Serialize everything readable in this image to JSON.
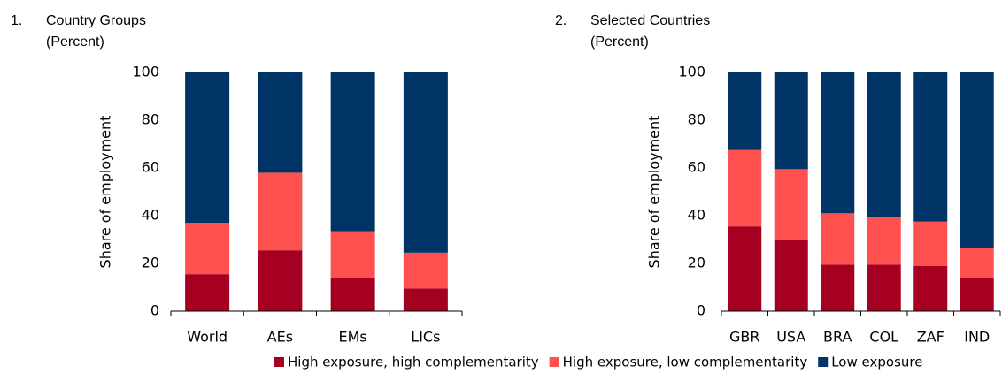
{
  "chart_data": [
    {
      "type": "bar",
      "stacked": true,
      "label": "1.",
      "title": "Country Groups",
      "subtitle": "(Percent)",
      "y_label": "Share of employment",
      "categories": [
        "World",
        "AEs",
        "EMs",
        "LICs"
      ],
      "series": [
        {
          "name": "High exposure, high complementarity",
          "color": "#a50021",
          "values": [
            15.5,
            25.5,
            14,
            9.5
          ]
        },
        {
          "name": "High exposure, low complementarity",
          "color": "#ff5050",
          "values": [
            21.5,
            32.5,
            19.5,
            15
          ]
        },
        {
          "name": "Low exposure",
          "color": "#003366",
          "values": [
            63,
            42,
            66.5,
            75.5
          ]
        }
      ],
      "ylim": [
        0,
        100
      ],
      "yticks": [
        0,
        20,
        40,
        60,
        80,
        100
      ]
    },
    {
      "type": "bar",
      "stacked": true,
      "label": "2.",
      "title": "Selected Countries",
      "subtitle": "(Percent)",
      "y_label": "Share of employment",
      "categories": [
        "GBR",
        "USA",
        "BRA",
        "COL",
        "ZAF",
        "IND"
      ],
      "series": [
        {
          "name": "High exposure, high complementarity",
          "color": "#a50021",
          "values": [
            35.5,
            30,
            19.5,
            19.5,
            19,
            14
          ]
        },
        {
          "name": "High exposure, low complementarity",
          "color": "#ff5050",
          "values": [
            32,
            29.5,
            21.5,
            20,
            18.5,
            12.5
          ]
        },
        {
          "name": "Low exposure",
          "color": "#003366",
          "values": [
            32.5,
            40.5,
            59,
            60.5,
            62.5,
            73.5
          ]
        }
      ],
      "ylim": [
        0,
        100
      ],
      "yticks": [
        0,
        20,
        40,
        60,
        80,
        100
      ]
    }
  ]
}
